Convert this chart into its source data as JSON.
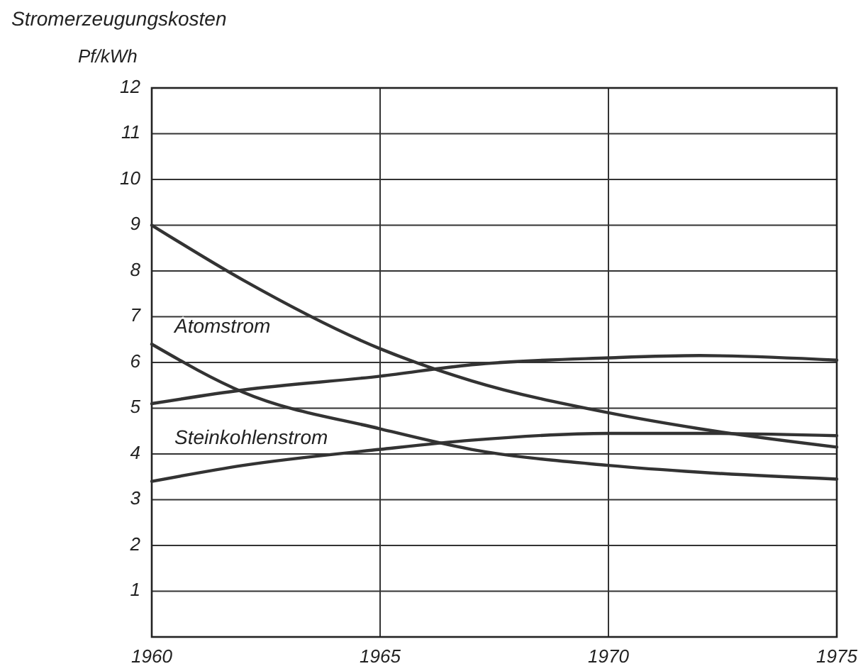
{
  "chart_data": {
    "type": "line",
    "title": "Stromerzeugungskosten",
    "ylabel": "Pf/kWh",
    "x": [
      1960,
      1962,
      1965,
      1967,
      1970,
      1972,
      1975
    ],
    "series": [
      {
        "color": "#333333",
        "values": [
          9,
          7.8,
          6.3,
          5.6,
          4.9,
          4.55,
          4.15
        ]
      },
      {
        "name": "Atomstrom",
        "color": "#333333",
        "values": [
          6.4,
          5.35,
          4.55,
          4.1,
          3.75,
          3.6,
          3.45
        ]
      },
      {
        "color": "#333333",
        "values": [
          5.1,
          5.4,
          5.7,
          5.95,
          6.1,
          6.15,
          6.05
        ]
      },
      {
        "name": "Steinkohlenstrom",
        "color": "#333333",
        "values": [
          3.4,
          3.75,
          4.1,
          4.3,
          4.45,
          4.45,
          4.4
        ]
      }
    ],
    "xlim": [
      1960,
      1975
    ],
    "xticks": [
      1960,
      1965,
      1970,
      1975
    ],
    "ylim": [
      0,
      12
    ],
    "yticks": [
      1,
      2,
      3,
      4,
      5,
      6,
      7,
      8,
      9,
      10,
      11,
      12
    ],
    "grid": true,
    "legend": false,
    "marker": "none",
    "line_style": "solid"
  }
}
